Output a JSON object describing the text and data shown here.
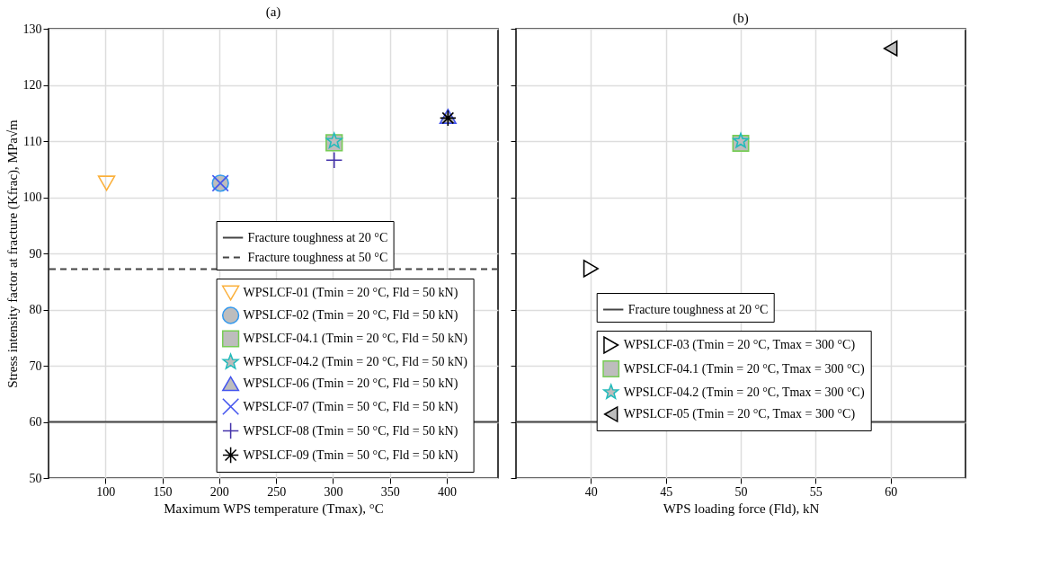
{
  "chart_data": [
    {
      "type": "scatter",
      "title": "(a)",
      "xlabel": "Maximum WPS temperature (Tmax), °C",
      "ylabel": "Stress intensity factor at fracture (Kfrac), MPa√m",
      "xlim": [
        50,
        445
      ],
      "xticks": [
        100,
        150,
        200,
        250,
        300,
        350,
        400
      ],
      "ylim": [
        50,
        130
      ],
      "yticks": [
        50,
        60,
        70,
        80,
        90,
        100,
        110,
        120,
        130
      ],
      "grid": true,
      "legend": "bottom right",
      "ref_lines": [
        {
          "axis": "y",
          "value": 60,
          "label": "Fracture toughness at 20 °C",
          "color": "#444444",
          "line_style": "solid"
        },
        {
          "axis": "y",
          "value": 87.2,
          "label": "Fracture toughness at 50 °C",
          "color": "#444444",
          "line_style": "dashed"
        }
      ],
      "series": [
        {
          "name": "WPSLCF-01 (Tmin = 20 °C, Fld = 50 kN)",
          "color": "#fbb03b",
          "marker": "triangle-down",
          "x": [
            101
          ],
          "values": [
            102.5
          ]
        },
        {
          "name": "WPSLCF-02 (Tmin = 20 °C, Fld = 50 kN)",
          "color": "#3399ee",
          "marker": "circle",
          "x": [
            201
          ],
          "values": [
            102.5
          ]
        },
        {
          "name": "WPSLCF-04.1 (Tmin = 20 °C, Fld = 50 kN)",
          "color": "#77cc55",
          "marker": "square",
          "x": [
            301
          ],
          "values": [
            109.7
          ]
        },
        {
          "name": "WPSLCF-04.2 (Tmin = 20 °C, Fld = 50 kN)",
          "color": "#22bbbb",
          "marker": "star",
          "x": [
            301
          ],
          "values": [
            110.0
          ]
        },
        {
          "name": "WPSLCF-06 (Tmin = 20 °C, Fld = 50 kN)",
          "color": "#4455ee",
          "marker": "triangle",
          "x": [
            401
          ],
          "values": [
            114.4
          ]
        },
        {
          "name": "WPSLCF-07 (Tmin = 50 °C, Fld = 50 kN)",
          "color": "#4455ee",
          "marker": "x",
          "x": [
            201
          ],
          "values": [
            102.5
          ]
        },
        {
          "name": "WPSLCF-08 (Tmin = 50 °C, Fld = 50 kN)",
          "color": "#4433aa",
          "marker": "plus",
          "x": [
            301
          ],
          "values": [
            106.6
          ]
        },
        {
          "name": "WPSLCF-09 (Tmin = 50 °C, Fld = 50 kN)",
          "color": "#000000",
          "marker": "cross",
          "x": [
            401
          ],
          "values": [
            114.1
          ]
        }
      ]
    },
    {
      "type": "scatter",
      "title": "(b)",
      "xlabel": "WPS loading force (Fld), kN",
      "xlim": [
        35,
        65
      ],
      "xticks": [
        40,
        45,
        50,
        55,
        60
      ],
      "ylim": [
        50,
        130
      ],
      "yticks": [
        50,
        60,
        70,
        80,
        90,
        100,
        110,
        120,
        130
      ],
      "grid": true,
      "legend": "bottom",
      "tick_labels": "x",
      "ref_lines": [
        {
          "axis": "y",
          "value": 60,
          "label": "Fracture toughness at 20 °C",
          "color": "#444444",
          "line_style": "solid"
        }
      ],
      "series": [
        {
          "name": "WPSLCF-03 (Tmin = 20 °C, Tmax = 300 °C)",
          "color": "#000000",
          "marker": "triangle-right",
          "x": [
            40
          ],
          "values": [
            87.3
          ]
        },
        {
          "name": "WPSLCF-04.1 (Tmin = 20 °C, Tmax = 300 °C)",
          "color": "#77cc55",
          "marker": "square",
          "x": [
            50
          ],
          "values": [
            109.6
          ]
        },
        {
          "name": "WPSLCF-04.2 (Tmin = 20 °C, Tmax = 300 °C)",
          "color": "#22bbbb",
          "marker": "star",
          "x": [
            50
          ],
          "values": [
            110.0
          ]
        },
        {
          "name": "WPSLCF-05 (Tmin = 20 °C, Tmax = 300 °C)",
          "color": "#000000",
          "marker": "triangle-left",
          "x": [
            60
          ],
          "values": [
            126.5
          ]
        }
      ]
    }
  ]
}
